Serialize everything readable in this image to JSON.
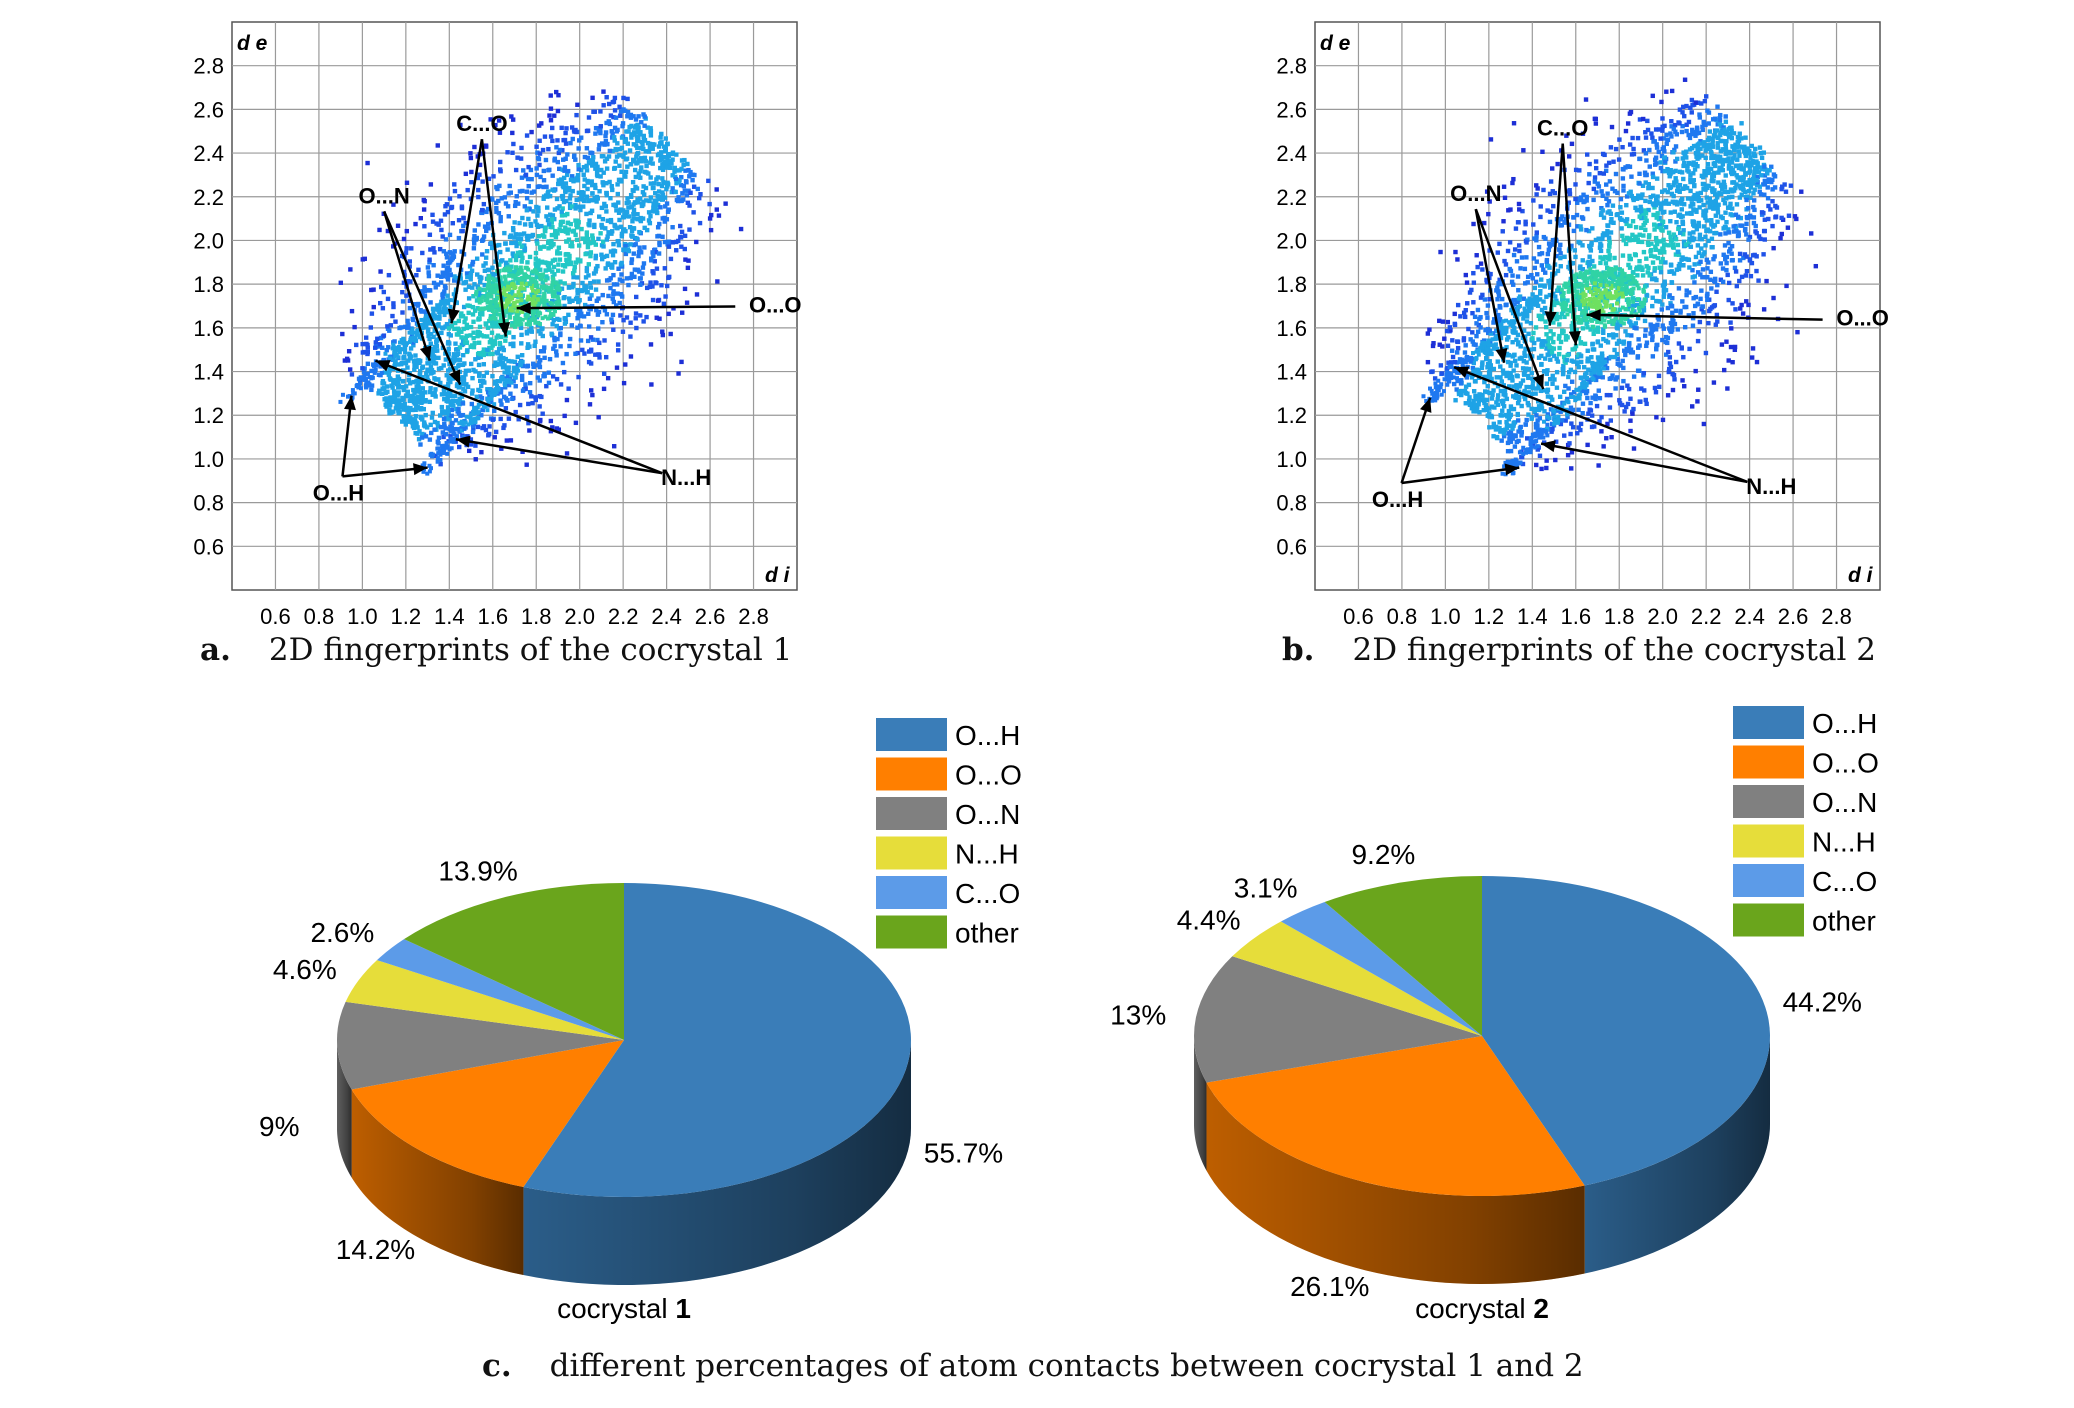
{
  "captions": {
    "a_letter": "a.",
    "a_text": "2D fingerprints of the cocrystal 1",
    "b_letter": "b.",
    "b_text": "2D fingerprints of the cocrystal 2",
    "c_letter": "c.",
    "c_text": "different percentages of atom contacts between cocrystal 1 and 2"
  },
  "colors": {
    "O...H": "#3a7db8",
    "O...O": "#ff7f00",
    "O...N": "#808080",
    "N...H": "#e6dd3a",
    "C...O": "#5c9be8",
    "other": "#6aa51c",
    "grid": "#9a9a9a",
    "plot_bg": "#ffffff"
  },
  "chart_data": [
    {
      "type": "scatter",
      "title": "",
      "xlabel": "d i",
      "ylabel": "d e",
      "xlim": [
        0.4,
        3.0
      ],
      "ylim": [
        0.4,
        3.0
      ],
      "xticks": [
        "0.6",
        "0.8",
        "1.0",
        "1.2",
        "1.4",
        "1.6",
        "1.8",
        "2.0",
        "2.2",
        "2.4",
        "2.6",
        "2.8"
      ],
      "yticks": [
        "0.6",
        "0.8",
        "1.0",
        "1.2",
        "1.4",
        "1.6",
        "1.8",
        "2.0",
        "2.2",
        "2.4",
        "2.6",
        "2.8"
      ],
      "grid": true,
      "annotations": [
        {
          "label": "C...O",
          "text_at": [
            1.55,
            2.5
          ],
          "points": [
            [
              1.41,
              1.62
            ],
            [
              1.66,
              1.56
            ]
          ]
        },
        {
          "label": "O...N",
          "text_at": [
            1.1,
            2.17
          ],
          "points": [
            [
              1.31,
              1.45
            ],
            [
              1.45,
              1.34
            ]
          ]
        },
        {
          "label": "O...O",
          "text_at": [
            2.9,
            1.67
          ],
          "points": [
            [
              1.71,
              1.69
            ]
          ]
        },
        {
          "label": "O...H",
          "text_at": [
            0.89,
            0.81
          ],
          "points": [
            [
              0.95,
              1.29
            ],
            [
              1.3,
              0.96
            ]
          ]
        },
        {
          "label": "N...H",
          "text_at": [
            2.49,
            0.88
          ],
          "points": [
            [
              1.06,
              1.45
            ],
            [
              1.43,
              1.09
            ]
          ]
        }
      ]
    },
    {
      "type": "scatter",
      "title": "",
      "xlabel": "d i",
      "ylabel": "d e",
      "xlim": [
        0.4,
        3.0
      ],
      "ylim": [
        0.4,
        3.0
      ],
      "xticks": [
        "0.6",
        "0.8",
        "1.0",
        "1.2",
        "1.4",
        "1.6",
        "1.8",
        "2.0",
        "2.2",
        "2.4",
        "2.6",
        "2.8"
      ],
      "yticks": [
        "0.6",
        "0.8",
        "1.0",
        "1.2",
        "1.4",
        "1.6",
        "1.8",
        "2.0",
        "2.2",
        "2.4",
        "2.6",
        "2.8"
      ],
      "grid": true,
      "annotations": [
        {
          "label": "C...O",
          "text_at": [
            1.54,
            2.48
          ],
          "points": [
            [
              1.48,
              1.61
            ],
            [
              1.6,
              1.52
            ]
          ]
        },
        {
          "label": "O...N",
          "text_at": [
            1.14,
            2.18
          ],
          "points": [
            [
              1.27,
              1.44
            ],
            [
              1.45,
              1.32
            ]
          ]
        },
        {
          "label": "O...O",
          "text_at": [
            2.92,
            1.61
          ],
          "points": [
            [
              1.65,
              1.66
            ]
          ]
        },
        {
          "label": "O...H",
          "text_at": [
            0.78,
            0.78
          ],
          "points": [
            [
              0.93,
              1.28
            ],
            [
              1.34,
              0.96
            ]
          ]
        },
        {
          "label": "N...H",
          "text_at": [
            2.5,
            0.84
          ],
          "points": [
            [
              1.04,
              1.42
            ],
            [
              1.44,
              1.07
            ]
          ]
        }
      ]
    },
    {
      "type": "pie",
      "title": "cocrystal",
      "title_bold": "1",
      "legend_position": "top-right",
      "labels": [
        "O...H",
        "O...O",
        "O...N",
        "N...H",
        "C...O",
        "other"
      ],
      "values": [
        55.7,
        14.2,
        9,
        4.6,
        2.6,
        13.9
      ],
      "value_labels": [
        "55.7%",
        "14.2%",
        "9%",
        "4.6%",
        "2.6%",
        "13.9%"
      ]
    },
    {
      "type": "pie",
      "title": "cocrystal",
      "title_bold": "2",
      "legend_position": "top-right",
      "labels": [
        "O...H",
        "O...O",
        "O...N",
        "N...H",
        "C...O",
        "other"
      ],
      "values": [
        44.2,
        26.1,
        13,
        4.4,
        3.1,
        9.2
      ],
      "value_labels": [
        "44.2%",
        "26.1%",
        "13%",
        "4.4%",
        "3.1%",
        "9.2%"
      ]
    }
  ]
}
